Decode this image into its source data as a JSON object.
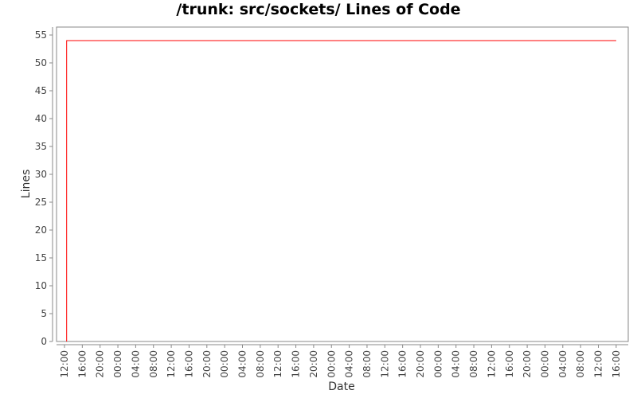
{
  "chart_data": {
    "type": "line",
    "title": "/trunk: src/sockets/ Lines of Code",
    "xlabel": "Date",
    "ylabel": "Lines",
    "ylim": [
      0,
      55
    ],
    "y_ticks": [
      0,
      5,
      10,
      15,
      20,
      25,
      30,
      35,
      40,
      45,
      50,
      55
    ],
    "x_ticks": [
      "12:00",
      "16:00",
      "20:00",
      "00:00",
      "04:00",
      "08:00",
      "12:00",
      "16:00",
      "20:00",
      "00:00",
      "04:00",
      "08:00",
      "12:00",
      "16:00",
      "20:00",
      "00:00",
      "04:00",
      "08:00",
      "12:00",
      "16:00",
      "20:00",
      "00:00",
      "04:00",
      "08:00",
      "12:00",
      "16:00",
      "20:00",
      "00:00",
      "04:00",
      "08:00",
      "12:00",
      "16:00"
    ],
    "x_unit": "tick index (4-hour steps)",
    "grid": false,
    "series": [
      {
        "color": "#ff0000",
        "points": [
          {
            "x": 0.12,
            "y": 0
          },
          {
            "x": 0.12,
            "y": 54
          },
          {
            "x": 31,
            "y": 54
          }
        ]
      }
    ]
  }
}
